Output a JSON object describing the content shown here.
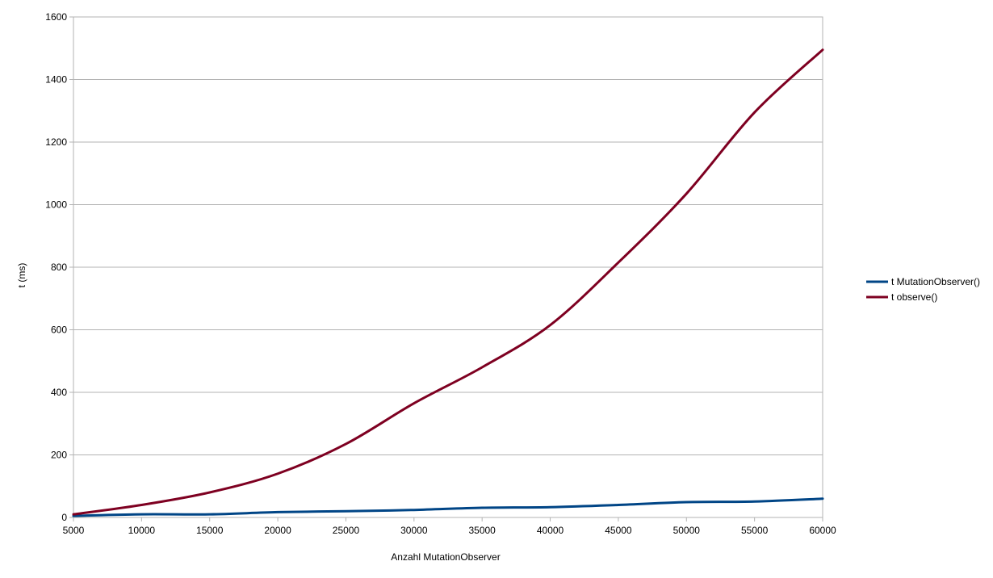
{
  "chart_data": {
    "type": "line",
    "title": "",
    "xlabel": "Anzahl MutationObserver",
    "ylabel": "t (ms)",
    "xlim": [
      5000,
      60000
    ],
    "ylim": [
      0,
      1600
    ],
    "x_ticks": [
      5000,
      10000,
      15000,
      20000,
      25000,
      30000,
      35000,
      40000,
      45000,
      50000,
      55000,
      60000
    ],
    "y_ticks": [
      0,
      200,
      400,
      600,
      800,
      1000,
      1200,
      1400,
      1600
    ],
    "grid": "horizontal",
    "legend_position": "right",
    "smooth": true,
    "x": [
      5000,
      10000,
      15000,
      20000,
      25000,
      30000,
      35000,
      40000,
      45000,
      50000,
      55000,
      60000
    ],
    "series": [
      {
        "name": "t MutationObserver()",
        "color": "#004586",
        "values": [
          5,
          10,
          10,
          17,
          20,
          24,
          31,
          33,
          40,
          49,
          51,
          60
        ]
      },
      {
        "name": "t observe()",
        "color": "#7e0021",
        "values": [
          10,
          40,
          80,
          140,
          235,
          365,
          480,
          615,
          815,
          1035,
          1295,
          1495
        ]
      }
    ]
  }
}
